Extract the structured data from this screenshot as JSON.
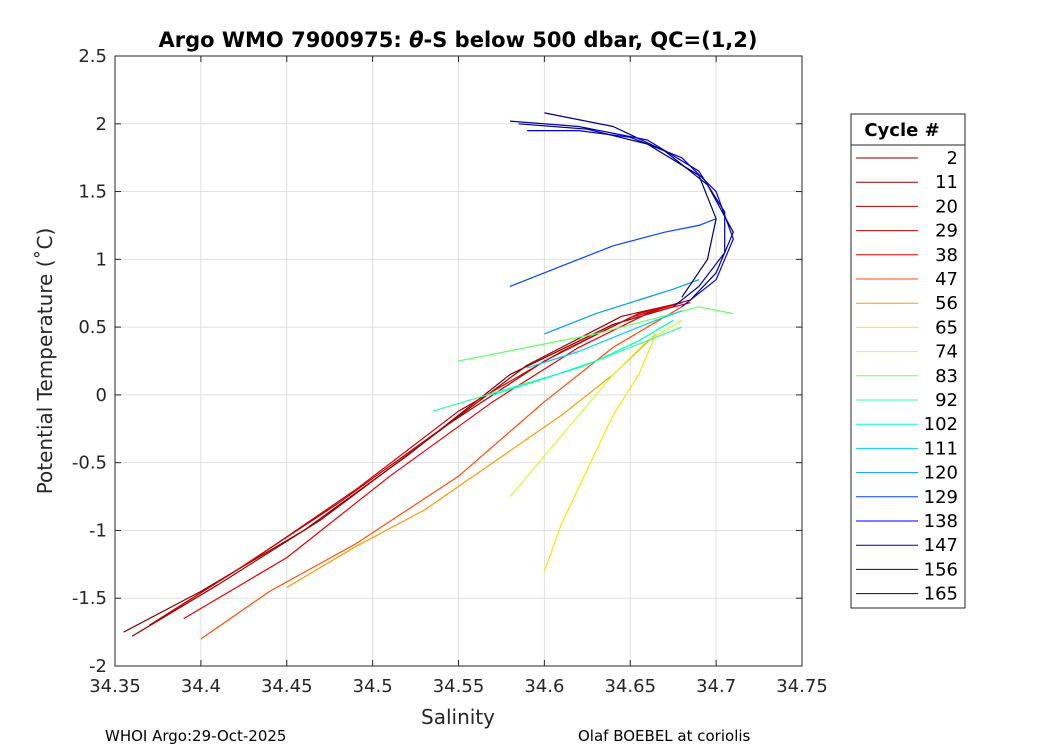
{
  "chart_data": {
    "type": "line",
    "title_prefix": "Argo WMO 7900975: ",
    "title_theta": "θ",
    "title_suffix": "-S below 500 dbar,  QC=(1,2)",
    "xlabel": "Salinity",
    "ylabel": "Potential Temperature (˚C)",
    "xlim": [
      34.35,
      34.75
    ],
    "ylim": [
      -2,
      2.5
    ],
    "xticks": [
      34.35,
      34.4,
      34.45,
      34.5,
      34.55,
      34.6,
      34.65,
      34.7,
      34.75
    ],
    "xtick_labels": [
      "34.35",
      "34.4",
      "34.45",
      "34.5",
      "34.55",
      "34.6",
      "34.65",
      "34.7",
      "34.75"
    ],
    "yticks": [
      -2,
      -1.5,
      -1,
      -0.5,
      0,
      0.5,
      1,
      1.5,
      2,
      2.5
    ],
    "ytick_labels": [
      "-2",
      "-1.5",
      "-1",
      "-0.5",
      "0",
      "0.5",
      "1",
      "1.5",
      "2",
      "2.5"
    ],
    "grid": true,
    "legend_title": "Cycle #",
    "legend_position": "right, outside",
    "series": [
      {
        "name": "2",
        "color": "#800000",
        "x": [
          34.355,
          34.4,
          34.46,
          34.52,
          34.58,
          34.64,
          34.675
        ],
        "y": [
          -1.75,
          -1.45,
          -1.0,
          -0.45,
          0.15,
          0.52,
          0.65
        ]
      },
      {
        "name": "11",
        "color": "#990000",
        "x": [
          34.36,
          34.41,
          34.47,
          34.53,
          34.59,
          34.645,
          34.68
        ],
        "y": [
          -1.78,
          -1.4,
          -0.92,
          -0.35,
          0.22,
          0.58,
          0.68
        ]
      },
      {
        "name": "20",
        "color": "#b30000",
        "x": [
          34.37,
          34.42,
          34.48,
          34.54,
          34.6,
          34.65,
          34.68
        ],
        "y": [
          -1.7,
          -1.3,
          -0.8,
          -0.25,
          0.25,
          0.57,
          0.68
        ]
      },
      {
        "name": "29",
        "color": "#cc0000",
        "x": [
          34.38,
          34.43,
          34.49,
          34.55,
          34.61,
          34.655,
          34.685
        ],
        "y": [
          -1.62,
          -1.22,
          -0.7,
          -0.12,
          0.32,
          0.6,
          0.7
        ]
      },
      {
        "name": "38",
        "color": "#e60000",
        "x": [
          34.39,
          34.45,
          34.51,
          34.57,
          34.62,
          34.66,
          34.685
        ],
        "y": [
          -1.65,
          -1.2,
          -0.6,
          -0.05,
          0.35,
          0.6,
          0.68
        ]
      },
      {
        "name": "47",
        "color": "#ff4d00",
        "x": [
          34.4,
          34.44,
          34.49,
          34.55,
          34.6,
          34.64,
          34.68
        ],
        "y": [
          -1.8,
          -1.45,
          -1.1,
          -0.6,
          -0.05,
          0.35,
          0.65
        ]
      },
      {
        "name": "56",
        "color": "#ff9900",
        "x": [
          34.45,
          34.49,
          34.53,
          34.57,
          34.61,
          34.64,
          34.665
        ],
        "y": [
          -1.42,
          -1.12,
          -0.85,
          -0.5,
          -0.15,
          0.15,
          0.45
        ]
      },
      {
        "name": "65",
        "color": "#ffe600",
        "x": [
          34.6,
          34.61,
          34.625,
          34.64,
          34.655,
          34.665
        ],
        "y": [
          -1.3,
          -0.95,
          -0.55,
          -0.15,
          0.15,
          0.45
        ]
      },
      {
        "name": "74",
        "color": "#ccff33",
        "x": [
          34.58,
          34.6,
          34.62,
          34.64,
          34.66,
          34.68
        ],
        "y": [
          -0.75,
          -0.45,
          -0.15,
          0.15,
          0.4,
          0.55
        ]
      },
      {
        "name": "83",
        "color": "#66ff66",
        "x": [
          34.55,
          34.59,
          34.63,
          34.66,
          34.69,
          34.71
        ],
        "y": [
          0.25,
          0.35,
          0.45,
          0.55,
          0.65,
          0.6
        ]
      },
      {
        "name": "92",
        "color": "#33ff99",
        "x": [
          34.535,
          34.58,
          34.62,
          34.65,
          34.68
        ],
        "y": [
          -0.12,
          0.05,
          0.2,
          0.35,
          0.5
        ]
      },
      {
        "name": "102",
        "color": "#00ffcc",
        "x": [
          34.57,
          34.6,
          34.63,
          34.655,
          34.675
        ],
        "y": [
          0.0,
          0.12,
          0.25,
          0.4,
          0.55
        ]
      },
      {
        "name": "111",
        "color": "#00ccff",
        "x": [
          34.59,
          34.62,
          34.645,
          34.665,
          34.68
        ],
        "y": [
          0.2,
          0.32,
          0.45,
          0.55,
          0.62
        ]
      },
      {
        "name": "120",
        "color": "#0099ff",
        "x": [
          34.6,
          34.63,
          34.655,
          34.675,
          34.69
        ],
        "y": [
          0.45,
          0.6,
          0.7,
          0.78,
          0.85
        ]
      },
      {
        "name": "129",
        "color": "#0044ff",
        "x": [
          34.58,
          34.61,
          34.64,
          34.67,
          34.69,
          34.7
        ],
        "y": [
          0.8,
          0.95,
          1.1,
          1.2,
          1.25,
          1.3
        ]
      },
      {
        "name": "138",
        "color": "#0000ee",
        "x": [
          34.59,
          34.62,
          34.65,
          34.68,
          34.7,
          34.71,
          34.7,
          34.68
        ],
        "y": [
          1.95,
          1.95,
          1.9,
          1.75,
          1.5,
          1.15,
          0.85,
          0.65
        ]
      },
      {
        "name": "147",
        "color": "#0000bb",
        "x": [
          34.58,
          34.62,
          34.66,
          34.69,
          34.705,
          34.705,
          34.69,
          34.675
        ],
        "y": [
          2.02,
          1.98,
          1.88,
          1.65,
          1.35,
          1.05,
          0.8,
          0.65
        ]
      },
      {
        "name": "156",
        "color": "#000088",
        "x": [
          34.6,
          34.64,
          34.67,
          34.695,
          34.71,
          34.7,
          34.685
        ],
        "y": [
          2.08,
          1.98,
          1.8,
          1.55,
          1.2,
          0.9,
          0.7
        ]
      },
      {
        "name": "165",
        "color": "#000066",
        "x": [
          34.585,
          34.625,
          34.66,
          34.69,
          34.7,
          34.695,
          34.68
        ],
        "y": [
          2.0,
          1.96,
          1.85,
          1.62,
          1.3,
          1.0,
          0.72
        ]
      }
    ]
  },
  "footer": {
    "left": "WHOI Argo:29-Oct-2025",
    "right": "Olaf BOEBEL at coriolis"
  }
}
